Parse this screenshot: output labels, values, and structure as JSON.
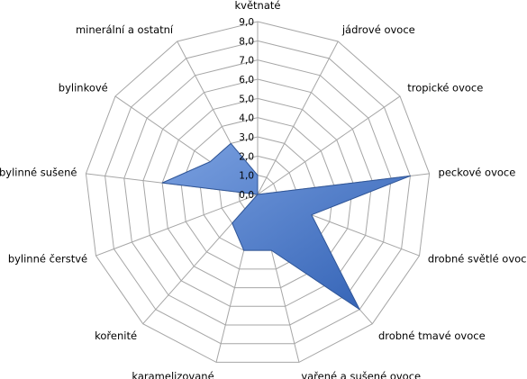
{
  "chart_data": {
    "type": "radar",
    "categories": [
      "květnaté",
      "jádrové ovoce",
      "tropické ovoce",
      "peckové ovoce",
      "drobné světlé ovoce",
      "drobné tmavé ovoce",
      "vařené a sušené ovoce",
      "karamelizované",
      "kořenité",
      "bylinné čerstvé",
      "bylinné sušené",
      "bylinkové",
      "minerální a ostatní"
    ],
    "series": [
      {
        "values": [
          1.0,
          0.0,
          0.0,
          8.0,
          3.0,
          8.0,
          3.0,
          3.0,
          2.0,
          0.0,
          5.0,
          3.0,
          3.0
        ]
      }
    ],
    "rlim": [
      0,
      9
    ],
    "ticks": [
      "0,0",
      "1,0",
      "2,0",
      "3,0",
      "4,0",
      "5,0",
      "6,0",
      "7,0",
      "8,0",
      "9,0"
    ],
    "grid": true,
    "legend": "none",
    "colors": {
      "fill": "#4472c4",
      "fill_light": "#6f96dc",
      "stroke": "#2f5597",
      "grid": "#a6a6a6"
    }
  }
}
